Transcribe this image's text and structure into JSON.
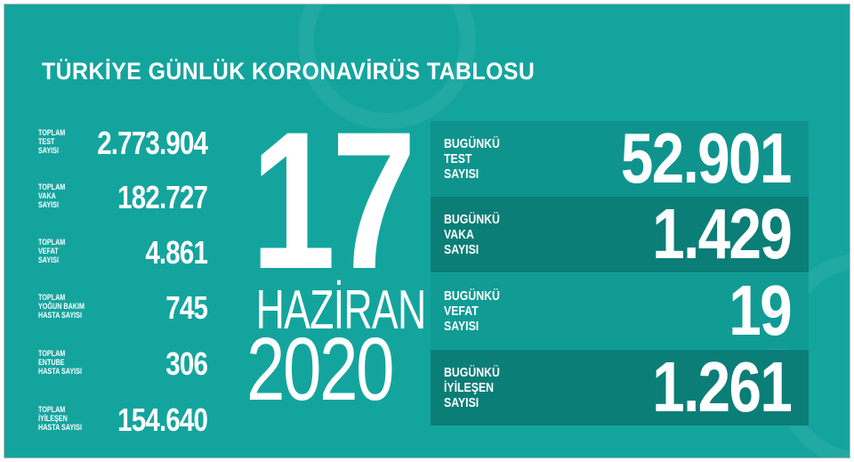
{
  "title": "TÜRKİYE GÜNLÜK KORONAVİRÜS TABLOSU",
  "date": {
    "day": "17",
    "month": "HAZİRAN",
    "year": "2020"
  },
  "totals": [
    {
      "label": "TOPLAM\nTEST\nSAYISI",
      "value": "2.773.904"
    },
    {
      "label": "TOPLAM\nVAKA\nSAYISI",
      "value": "182.727"
    },
    {
      "label": "TOPLAM\nVEFAT\nSAYISI",
      "value": "4.861"
    },
    {
      "label": "TOPLAM\nYOĞUN BAKIM\nHASTA SAYISI",
      "value": "745"
    },
    {
      "label": "TOPLAM\nENTUBE\nHASTA SAYISI",
      "value": "306"
    },
    {
      "label": "TOPLAM\nİYİLEŞEN\nHASTA SAYISI",
      "value": "154.640"
    }
  ],
  "daily": [
    {
      "label": "BUGÜNKÜ\nTEST\nSAYISI",
      "value": "52.901",
      "color": "#0f948d"
    },
    {
      "label": "BUGÜNKÜ\nVAKA\nSAYISI",
      "value": "1.429",
      "color": "#0b7e77"
    },
    {
      "label": "BUGÜNKÜ\nVEFAT\nSAYISI",
      "value": "19",
      "color": "#109b94"
    },
    {
      "label": "BUGÜNKÜ\nİYİLEŞEN\nSAYISI",
      "value": "1.261",
      "color": "#0b7e77"
    }
  ],
  "colors": {
    "background": "#14a49e"
  }
}
